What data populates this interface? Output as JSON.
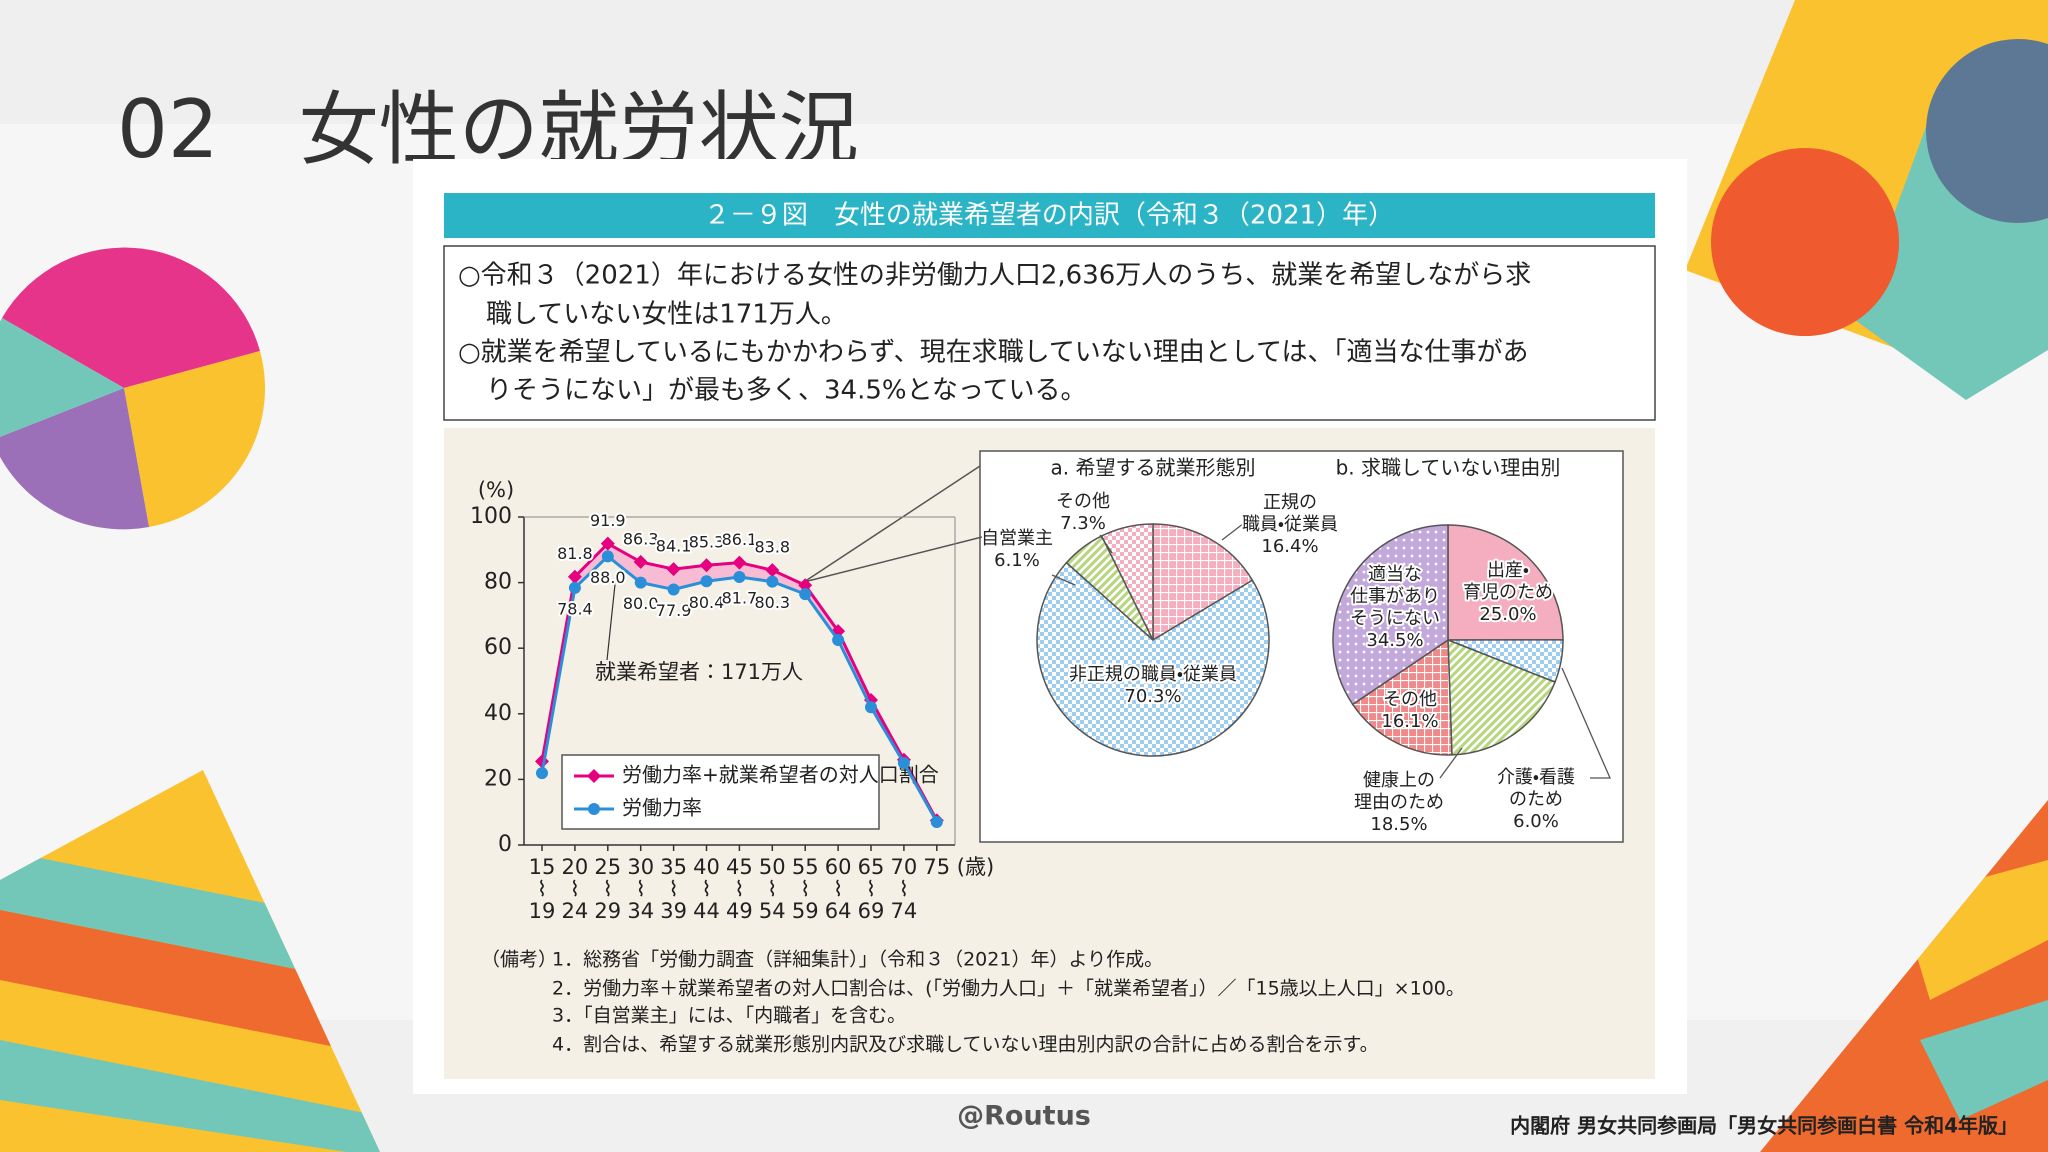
{
  "slide": {
    "title": "02　女性の就労状況",
    "figure_title": "２－９図　女性の就業希望者の内訳（令和３（2021）年）",
    "summary": [
      "○令和３（2021）年における女性の非労働力人口2,636万人のうち、就業を希望しながら求",
      "職していない女性は171万人。",
      "○就業を希望しているにもかかわらず、現在求職していない理由としては、「適当な仕事があ",
      "りそうにない」が最も多く、34.5%となっている。"
    ],
    "notes_label": "（備考）",
    "notes": [
      "1．総務省「労働力調査（詳細集計）」（令和３（2021）年）より作成。",
      "2．労働力率＋就業希望者の対人口割合は、(「労働力人口」＋「就業希望者」）／「15歳以上人口」×100。",
      "3．「自営業主」には、「内職者」を含む。",
      "4．割合は、希望する就業形態別内訳及び求職していない理由別内訳の合計に占める割合を示す。"
    ],
    "watermark": "@Routus",
    "source": "内閣府 男女共同参画局「男女共同参画白書 令和4年版」"
  },
  "chart_data": [
    {
      "type": "line",
      "y_unit": "(%)",
      "x_unit": "(歳)",
      "annotation": "就業希望者：171万人",
      "categories": [
        "15\n⌇\n19",
        "20\n⌇\n24",
        "25\n⌇\n29",
        "30\n⌇\n34",
        "35\n⌇\n39",
        "40\n⌇\n44",
        "45\n⌇\n49",
        "50\n⌇\n54",
        "55\n⌇\n59",
        "60\n⌇\n64",
        "65\n⌇\n69",
        "70\n⌇\n74",
        "75"
      ],
      "series": [
        {
          "name": "労働力率+就業希望者の対人口割合",
          "color": "#e4007f",
          "marker": "diamond",
          "values": [
            25.5,
            81.8,
            91.9,
            86.3,
            84.1,
            85.3,
            86.1,
            83.8,
            79.2,
            65.2,
            44.2,
            26.0,
            7.5
          ],
          "value_labels": [
            null,
            "81.8",
            "91.9",
            "86.3",
            "84.1",
            "85.3",
            "86.1",
            "83.8",
            null,
            null,
            null,
            null,
            null
          ]
        },
        {
          "name": "労働力率",
          "color": "#2a8fd8",
          "marker": "circle",
          "values": [
            21.9,
            78.4,
            88.0,
            80.0,
            77.9,
            80.4,
            81.7,
            80.3,
            76.5,
            62.5,
            42.0,
            25.0,
            7.0
          ],
          "value_labels": [
            null,
            "78.4",
            "88.0",
            "80.0",
            "77.9",
            "80.4",
            "81.7",
            "80.3",
            null,
            null,
            null,
            null,
            null
          ]
        }
      ],
      "fill_between_color": "#f7bcd3",
      "ylim": [
        0,
        100
      ],
      "yticks": [
        0,
        20,
        40,
        60,
        80,
        100
      ]
    },
    {
      "type": "pie",
      "title": "a.  希望する就業形態別",
      "categories": [
        "正規の\n職員・従業員",
        "非正規の職員・従業員",
        "自営業主",
        "その他"
      ],
      "values": [
        16.4,
        70.3,
        6.1,
        7.3
      ],
      "value_labels": [
        "16.4%",
        "70.3%",
        "6.1%",
        "7.3%"
      ],
      "colors": [
        "#f4aebf",
        "#9fcdf0",
        "#b5d67c",
        "#f4aebf"
      ],
      "patterns": [
        "grid",
        "check",
        "stripes",
        "check"
      ]
    },
    {
      "type": "pie",
      "title": "b.  求職していない理由別",
      "categories": [
        "出産・\n育児のため",
        "介護・看護\nのため",
        "健康上の\n理由のため",
        "その他",
        "適当な\n仕事があり\nそうにない"
      ],
      "values": [
        25.0,
        6.0,
        18.5,
        16.1,
        34.5
      ],
      "value_labels": [
        "25.0%",
        "6.0%",
        "18.5%",
        "16.1%",
        "34.5%"
      ],
      "colors": [
        "#f4aebf",
        "#9fcdf0",
        "#b5d67c",
        "#f08a8a",
        "#c3a8dc"
      ],
      "patterns": [
        "plain",
        "check",
        "stripes",
        "grid",
        "dots"
      ]
    }
  ]
}
